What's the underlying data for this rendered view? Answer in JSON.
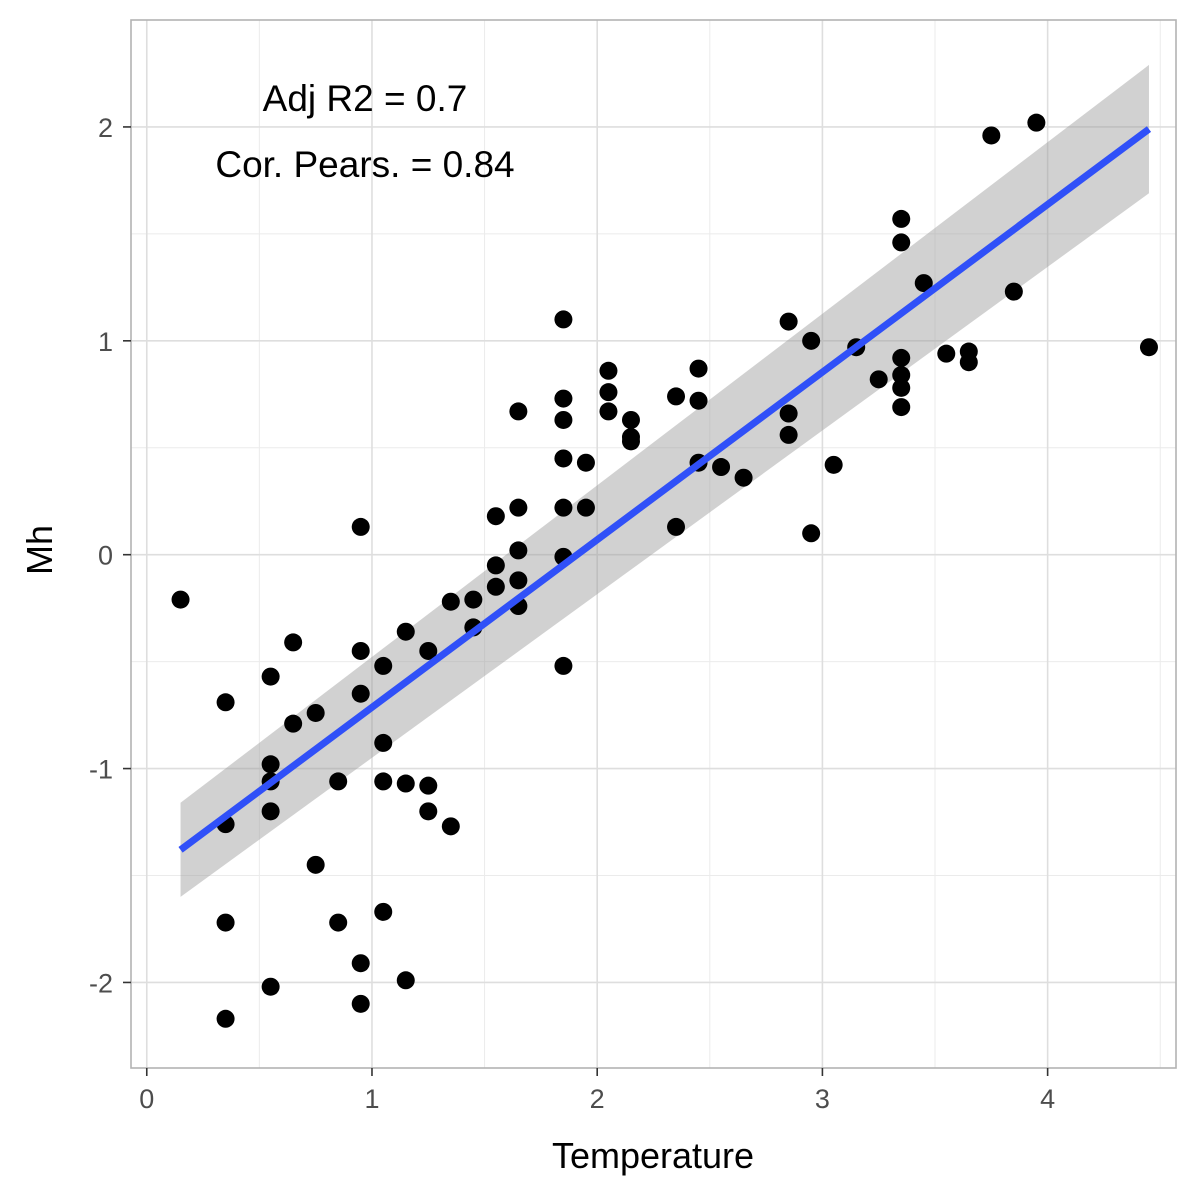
{
  "chart_data": {
    "type": "scatter",
    "title": "",
    "xlabel": "Temperature",
    "ylabel": "Mh",
    "xlim": [
      -0.07,
      4.57
    ],
    "ylim": [
      -2.4,
      2.5
    ],
    "x_ticks": [
      0,
      1,
      2,
      3,
      4
    ],
    "y_ticks": [
      -2,
      -1,
      0,
      1,
      2
    ],
    "x_tick_labels": [
      "0",
      "1",
      "2",
      "3",
      "4"
    ],
    "y_tick_labels": [
      "-2",
      "-1",
      "0",
      "1",
      "2"
    ],
    "grid": true,
    "legend": "none",
    "annotations": [
      "Adj R2 = 0.7",
      "Cor. Pears. = 0.84"
    ],
    "regression_line": {
      "x": [
        0.15,
        4.45
      ],
      "y": [
        -1.38,
        1.99
      ],
      "color": "#3050f8",
      "ci_lower_y": [
        -1.6,
        1.69
      ],
      "ci_upper_y": [
        -1.16,
        2.29
      ],
      "ci_color": "#999999"
    },
    "point_color": "#000000",
    "points": [
      {
        "x": 0.15,
        "y": -0.21
      },
      {
        "x": 0.35,
        "y": -0.69
      },
      {
        "x": 0.35,
        "y": -1.26
      },
      {
        "x": 0.35,
        "y": -1.72
      },
      {
        "x": 0.35,
        "y": -2.17
      },
      {
        "x": 0.55,
        "y": -0.57
      },
      {
        "x": 0.55,
        "y": -0.98
      },
      {
        "x": 0.55,
        "y": -1.06
      },
      {
        "x": 0.55,
        "y": -1.2
      },
      {
        "x": 0.55,
        "y": -2.02
      },
      {
        "x": 0.65,
        "y": -0.41
      },
      {
        "x": 0.65,
        "y": -0.79
      },
      {
        "x": 0.75,
        "y": -0.74
      },
      {
        "x": 0.75,
        "y": -1.45
      },
      {
        "x": 0.85,
        "y": -1.06
      },
      {
        "x": 0.85,
        "y": -1.72
      },
      {
        "x": 0.95,
        "y": 0.13
      },
      {
        "x": 0.95,
        "y": -0.45
      },
      {
        "x": 0.95,
        "y": -0.65
      },
      {
        "x": 0.95,
        "y": -1.91
      },
      {
        "x": 0.95,
        "y": -2.1
      },
      {
        "x": 1.05,
        "y": -0.52
      },
      {
        "x": 1.05,
        "y": -0.88
      },
      {
        "x": 1.05,
        "y": -1.06
      },
      {
        "x": 1.05,
        "y": -1.67
      },
      {
        "x": 1.15,
        "y": -0.36
      },
      {
        "x": 1.15,
        "y": -1.07
      },
      {
        "x": 1.15,
        "y": -1.99
      },
      {
        "x": 1.25,
        "y": -0.45
      },
      {
        "x": 1.25,
        "y": -1.08
      },
      {
        "x": 1.25,
        "y": -1.2
      },
      {
        "x": 1.35,
        "y": -0.22
      },
      {
        "x": 1.35,
        "y": -1.27
      },
      {
        "x": 1.45,
        "y": -0.21
      },
      {
        "x": 1.45,
        "y": -0.34
      },
      {
        "x": 1.55,
        "y": 0.18
      },
      {
        "x": 1.55,
        "y": -0.05
      },
      {
        "x": 1.55,
        "y": -0.15
      },
      {
        "x": 1.65,
        "y": 0.67
      },
      {
        "x": 1.65,
        "y": 0.22
      },
      {
        "x": 1.65,
        "y": 0.02
      },
      {
        "x": 1.65,
        "y": -0.12
      },
      {
        "x": 1.65,
        "y": -0.24
      },
      {
        "x": 1.85,
        "y": 1.1
      },
      {
        "x": 1.85,
        "y": 0.73
      },
      {
        "x": 1.85,
        "y": 0.63
      },
      {
        "x": 1.85,
        "y": 0.45
      },
      {
        "x": 1.85,
        "y": 0.22
      },
      {
        "x": 1.85,
        "y": -0.01
      },
      {
        "x": 1.85,
        "y": -0.52
      },
      {
        "x": 1.95,
        "y": 0.43
      },
      {
        "x": 1.95,
        "y": 0.22
      },
      {
        "x": 2.05,
        "y": 0.86
      },
      {
        "x": 2.05,
        "y": 0.76
      },
      {
        "x": 2.05,
        "y": 0.67
      },
      {
        "x": 2.15,
        "y": 0.63
      },
      {
        "x": 2.15,
        "y": 0.55
      },
      {
        "x": 2.15,
        "y": 0.53
      },
      {
        "x": 2.35,
        "y": 0.74
      },
      {
        "x": 2.35,
        "y": 0.13
      },
      {
        "x": 2.45,
        "y": 0.87
      },
      {
        "x": 2.45,
        "y": 0.72
      },
      {
        "x": 2.45,
        "y": 0.43
      },
      {
        "x": 2.55,
        "y": 0.41
      },
      {
        "x": 2.65,
        "y": 0.36
      },
      {
        "x": 2.85,
        "y": 1.09
      },
      {
        "x": 2.85,
        "y": 0.66
      },
      {
        "x": 2.85,
        "y": 0.56
      },
      {
        "x": 2.95,
        "y": 1.0
      },
      {
        "x": 2.95,
        "y": 0.1
      },
      {
        "x": 3.05,
        "y": 0.42
      },
      {
        "x": 3.15,
        "y": 0.97
      },
      {
        "x": 3.25,
        "y": 0.82
      },
      {
        "x": 3.35,
        "y": 1.57
      },
      {
        "x": 3.35,
        "y": 1.46
      },
      {
        "x": 3.35,
        "y": 0.92
      },
      {
        "x": 3.35,
        "y": 0.84
      },
      {
        "x": 3.35,
        "y": 0.78
      },
      {
        "x": 3.35,
        "y": 0.69
      },
      {
        "x": 3.45,
        "y": 1.27
      },
      {
        "x": 3.55,
        "y": 0.94
      },
      {
        "x": 3.65,
        "y": 0.95
      },
      {
        "x": 3.65,
        "y": 0.9
      },
      {
        "x": 3.75,
        "y": 1.96
      },
      {
        "x": 3.85,
        "y": 1.23
      },
      {
        "x": 3.95,
        "y": 2.02
      },
      {
        "x": 4.45,
        "y": 0.97
      }
    ]
  }
}
